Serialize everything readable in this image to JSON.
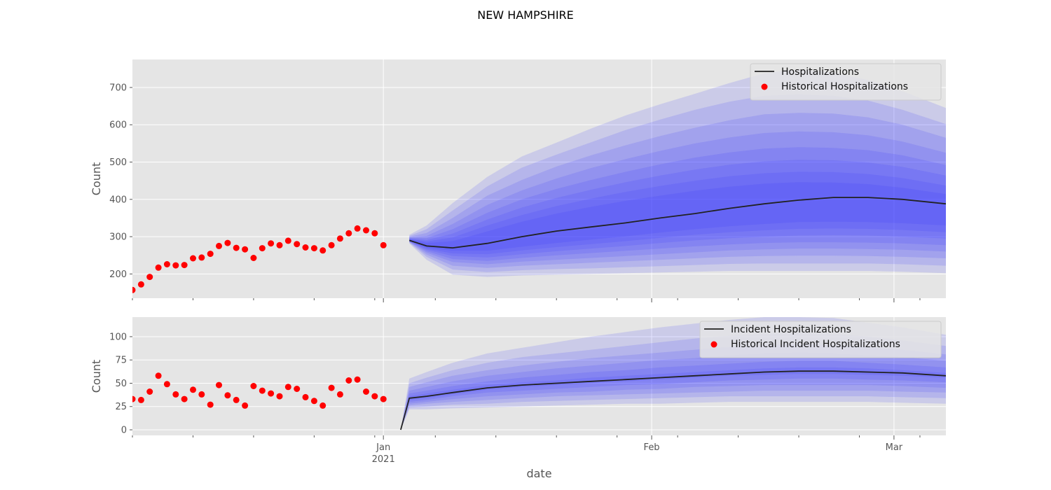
{
  "title": "NEW HAMPSHIRE",
  "colors": {
    "panel_bg": "#e5e5e5",
    "grid": "#ffffff",
    "line": "#222222",
    "points": "#ff0000",
    "band": "#3030ff"
  },
  "chart_data": [
    {
      "type": "line",
      "ylabel": "Count",
      "xlabel": "",
      "xlim": [
        "2020-12-03",
        "2021-03-07"
      ],
      "ylim": [
        135,
        775
      ],
      "yticks": [
        200,
        300,
        400,
        500,
        600,
        700
      ],
      "grid": true,
      "legend": {
        "placement": "top-right",
        "entries": [
          {
            "name": "Hospitalizations",
            "kind": "line"
          },
          {
            "name": "Historical Hospitalizations",
            "kind": "marker"
          }
        ]
      },
      "historical": {
        "name": "Historical Hospitalizations",
        "x": [
          "2020-12-03",
          "2020-12-04",
          "2020-12-05",
          "2020-12-06",
          "2020-12-07",
          "2020-12-08",
          "2020-12-09",
          "2020-12-10",
          "2020-12-11",
          "2020-12-12",
          "2020-12-13",
          "2020-12-14",
          "2020-12-15",
          "2020-12-16",
          "2020-12-17",
          "2020-12-18",
          "2020-12-19",
          "2020-12-20",
          "2020-12-21",
          "2020-12-22",
          "2020-12-23",
          "2020-12-24",
          "2020-12-25",
          "2020-12-26",
          "2020-12-27",
          "2020-12-28",
          "2020-12-29",
          "2020-12-30",
          "2020-12-31",
          "2021-01-01",
          "2021-01-02",
          "2021-01-03"
        ],
        "y": [
          157,
          172,
          192,
          217,
          226,
          223,
          224,
          242,
          244,
          254,
          275,
          283,
          270,
          266,
          243,
          269,
          282,
          277,
          289,
          280,
          271,
          269,
          263,
          277,
          295,
          309,
          322,
          317,
          309,
          277,
          null,
          null
        ]
      },
      "forecast": {
        "name": "Hospitalizations",
        "x": [
          "2021-01-04",
          "2021-01-06",
          "2021-01-09",
          "2021-01-13",
          "2021-01-17",
          "2021-01-21",
          "2021-01-25",
          "2021-01-29",
          "2021-02-02",
          "2021-02-06",
          "2021-02-10",
          "2021-02-14",
          "2021-02-18",
          "2021-02-22",
          "2021-02-26",
          "2021-03-02",
          "2021-03-07"
        ],
        "median": [
          290,
          275,
          270,
          282,
          300,
          315,
          326,
          337,
          350,
          362,
          376,
          388,
          398,
          405,
          405,
          400,
          388
        ],
        "bands": [
          {
            "lower": [
              282,
              238,
              198,
              192,
              196,
              198,
              200,
              202,
              204,
              206,
              208,
              208,
              208,
              208,
              208,
              206,
              202
            ],
            "upper": [
              305,
              330,
              390,
              460,
              515,
              552,
              590,
              625,
              655,
              683,
              712,
              738,
              748,
              740,
              720,
              690,
              645
            ]
          },
          {
            "lower": [
              284,
              246,
              212,
              205,
              210,
              213,
              215,
              218,
              221,
              224,
              227,
              228,
              228,
              228,
              228,
              226,
              222
            ],
            "upper": [
              302,
              320,
              370,
              435,
              485,
              520,
              553,
              586,
              614,
              640,
              662,
              678,
              682,
              678,
              665,
              640,
              602
            ]
          },
          {
            "lower": [
              285,
              252,
              222,
              216,
              222,
              226,
              230,
              234,
              238,
              242,
              246,
              248,
              249,
              249,
              248,
              246,
              242
            ],
            "upper": [
              300,
              310,
              350,
              410,
              452,
              488,
              518,
              545,
              570,
              592,
              612,
              628,
              632,
              630,
              620,
              600,
              565
            ]
          },
          {
            "lower": [
              286,
              257,
              232,
              226,
              233,
              238,
              243,
              248,
              253,
              258,
              263,
              266,
              268,
              268,
              267,
              265,
              260
            ],
            "upper": [
              298,
              302,
              334,
              385,
              424,
              456,
              484,
              508,
              530,
              550,
              566,
              578,
              582,
              580,
              572,
              555,
              525
            ]
          },
          {
            "lower": [
              287,
              261,
              240,
              235,
              243,
              250,
              256,
              262,
              268,
              274,
              279,
              283,
              285,
              285,
              284,
              282,
              277
            ],
            "upper": [
              297,
              296,
              320,
              364,
              400,
              428,
              452,
              474,
              494,
              512,
              526,
              536,
              540,
              538,
              532,
              518,
              492
            ]
          },
          {
            "lower": [
              287,
              265,
              248,
              244,
              253,
              261,
              268,
              275,
              283,
              290,
              296,
              300,
              303,
              304,
              303,
              300,
              295
            ],
            "upper": [
              295,
              291,
              308,
              346,
              378,
              404,
              426,
              446,
              464,
              480,
              493,
              502,
              506,
              505,
              499,
              487,
              464
            ]
          },
          {
            "lower": [
              288,
              268,
              255,
              253,
              263,
              272,
              280,
              288,
              297,
              305,
              312,
              317,
              321,
              322,
              321,
              318,
              312
            ],
            "upper": [
              294,
              287,
              298,
              330,
              358,
              382,
              402,
              420,
              436,
              450,
              462,
              470,
              474,
              473,
              468,
              457,
              437
            ]
          },
          {
            "lower": [
              289,
              271,
              262,
              262,
              273,
              283,
              292,
              301,
              311,
              320,
              328,
              334,
              339,
              340,
              339,
              336,
              330
            ],
            "upper": [
              293,
              283,
              288,
              314,
              340,
              362,
              380,
              396,
              410,
              423,
              434,
              442,
              446,
              445,
              441,
              431,
              414
            ]
          }
        ]
      }
    },
    {
      "type": "line",
      "ylabel": "Count",
      "xlabel": "date",
      "xlim": [
        "2020-12-03",
        "2021-03-07"
      ],
      "ylim": [
        -6,
        121
      ],
      "yticks": [
        0,
        25,
        50,
        75,
        100
      ],
      "xticks_major": [
        {
          "date": "2021-01-01",
          "label": "Jan",
          "sublabel": "2021"
        },
        {
          "date": "2021-02-01",
          "label": "Feb",
          "sublabel": ""
        },
        {
          "date": "2021-03-01",
          "label": "Mar",
          "sublabel": ""
        }
      ],
      "grid": true,
      "legend": {
        "placement": "top-right",
        "entries": [
          {
            "name": "Incident Hospitalizations",
            "kind": "line"
          },
          {
            "name": "Historical Incident Hospitalizations",
            "kind": "marker"
          }
        ]
      },
      "historical": {
        "name": "Historical Incident Hospitalizations",
        "x": [
          "2020-12-03",
          "2020-12-04",
          "2020-12-05",
          "2020-12-06",
          "2020-12-07",
          "2020-12-08",
          "2020-12-09",
          "2020-12-10",
          "2020-12-11",
          "2020-12-12",
          "2020-12-13",
          "2020-12-14",
          "2020-12-15",
          "2020-12-16",
          "2020-12-17",
          "2020-12-18",
          "2020-12-19",
          "2020-12-20",
          "2020-12-21",
          "2020-12-22",
          "2020-12-23",
          "2020-12-24",
          "2020-12-25",
          "2020-12-26",
          "2020-12-27",
          "2020-12-28",
          "2020-12-29",
          "2020-12-30",
          "2020-12-31",
          "2021-01-01",
          "2021-01-02"
        ],
        "y": [
          33,
          32,
          41,
          58,
          49,
          38,
          33,
          43,
          38,
          27,
          48,
          37,
          32,
          26,
          47,
          42,
          39,
          36,
          46,
          44,
          35,
          31,
          26,
          45,
          38,
          53,
          54,
          41,
          36,
          33,
          null
        ]
      },
      "forecast": {
        "name": "Incident Hospitalizations",
        "x": [
          "2021-01-03",
          "2021-01-04",
          "2021-01-06",
          "2021-01-09",
          "2021-01-13",
          "2021-01-17",
          "2021-01-21",
          "2021-01-25",
          "2021-01-29",
          "2021-02-02",
          "2021-02-06",
          "2021-02-10",
          "2021-02-14",
          "2021-02-18",
          "2021-02-22",
          "2021-02-26",
          "2021-03-02",
          "2021-03-07"
        ],
        "median": [
          0,
          34,
          36,
          40,
          45,
          48,
          50,
          52,
          54,
          56,
          58,
          60,
          62,
          63,
          63,
          62,
          61,
          58
        ],
        "bands": [
          {
            "lower": [
              0,
              22,
              22,
              23,
              24,
              25,
              26,
              27,
              28,
              28,
              29,
              30,
              30,
              30,
              30,
              30,
              29,
              28
            ],
            "upper": [
              0,
              55,
              62,
              72,
              82,
              88,
              94,
              100,
              105,
              110,
              114,
              118,
              121,
              121,
              120,
              115,
              110,
              102
            ]
          },
          {
            "lower": [
              0,
              24,
              25,
              27,
              28,
              30,
              31,
              32,
              33,
              34,
              35,
              36,
              36,
              36,
              36,
              36,
              35,
              34
            ],
            "upper": [
              0,
              50,
              56,
              64,
              72,
              78,
              82,
              86,
              90,
              94,
              98,
              101,
              103,
              104,
              103,
              100,
              96,
              90
            ]
          },
          {
            "lower": [
              0,
              26,
              28,
              30,
              32,
              34,
              36,
              37,
              38,
              39,
              40,
              41,
              42,
              42,
              42,
              42,
              41,
              40
            ],
            "upper": [
              0,
              46,
              51,
              58,
              64,
              69,
              73,
              77,
              80,
              83,
              86,
              89,
              91,
              92,
              91,
              89,
              86,
              81
            ]
          },
          {
            "lower": [
              0,
              28,
              30,
              33,
              36,
              38,
              40,
              41,
              43,
              44,
              46,
              47,
              48,
              48,
              48,
              48,
              47,
              45
            ],
            "upper": [
              0,
              42,
              46,
              52,
              58,
              62,
              66,
              69,
              72,
              75,
              77,
              80,
              82,
              83,
              82,
              80,
              78,
              74
            ]
          },
          {
            "lower": [
              0,
              30,
              32,
              36,
              40,
              42,
              44,
              46,
              48,
              49,
              51,
              53,
              54,
              55,
              55,
              54,
              53,
              51
            ],
            "upper": [
              0,
              39,
              42,
              47,
              52,
              56,
              59,
              62,
              64,
              67,
              69,
              71,
              73,
              74,
              74,
              72,
              70,
              67
            ]
          },
          {
            "lower": [
              0,
              32,
              34,
              38,
              43,
              46,
              48,
              50,
              52,
              54,
              56,
              58,
              59,
              60,
              60,
              59,
              58,
              56
            ],
            "upper": [
              0,
              36,
              39,
              43,
              48,
              51,
              53,
              56,
              58,
              60,
              62,
              64,
              66,
              67,
              67,
              66,
              64,
              61
            ]
          }
        ]
      }
    }
  ]
}
